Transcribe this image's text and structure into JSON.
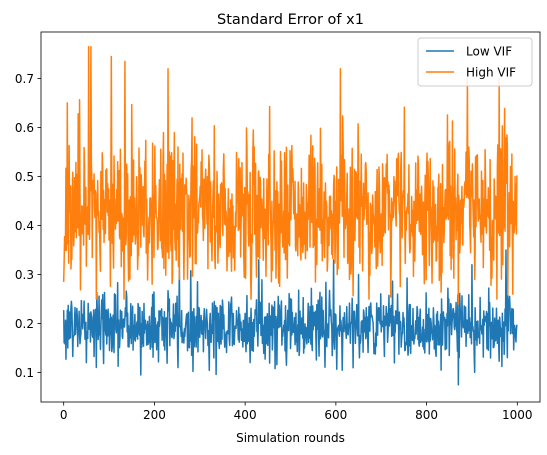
{
  "chart_data": {
    "type": "line",
    "title": "Standard Error of x1",
    "xlabel": "Simulation rounds",
    "ylabel": "",
    "xlim": [
      -50,
      1050
    ],
    "ylim": [
      0.04,
      0.795
    ],
    "xticks": [
      0,
      200,
      400,
      600,
      800,
      1000
    ],
    "yticks": [
      0.1,
      0.2,
      0.3,
      0.4,
      0.5,
      0.6,
      0.7
    ],
    "xtick_labels": [
      "0",
      "200",
      "400",
      "600",
      "800",
      "1000"
    ],
    "ytick_labels": [
      "0.1",
      "0.2",
      "0.3",
      "0.4",
      "0.5",
      "0.6",
      "0.7"
    ],
    "grid": false,
    "legend_position": "top-right",
    "n_points": 1000,
    "series": [
      {
        "name": "Low VIF",
        "color": "#1f77b4",
        "mean": 0.195,
        "approx_range": [
          0.075,
          0.35
        ],
        "notable_points": [
          [
            170,
            0.095
          ],
          [
            255,
            0.31
          ],
          [
            430,
            0.33
          ],
          [
            595,
            0.33
          ],
          [
            650,
            0.3
          ],
          [
            870,
            0.075
          ],
          [
            900,
            0.32
          ],
          [
            975,
            0.35
          ]
        ]
      },
      {
        "name": "High VIF",
        "color": "#ff7f0e",
        "mean": 0.43,
        "approx_range": [
          0.24,
          0.765
        ],
        "notable_points": [
          [
            0,
            0.285
          ],
          [
            55,
            0.765
          ],
          [
            60,
            0.765
          ],
          [
            105,
            0.745
          ],
          [
            135,
            0.735
          ],
          [
            230,
            0.72
          ],
          [
            240,
            0.3
          ],
          [
            610,
            0.72
          ],
          [
            630,
            0.29
          ],
          [
            870,
            0.24
          ],
          [
            890,
            0.7
          ],
          [
            960,
            0.7
          ],
          [
            990,
            0.26
          ],
          [
            995,
            0.5
          ]
        ]
      }
    ]
  }
}
